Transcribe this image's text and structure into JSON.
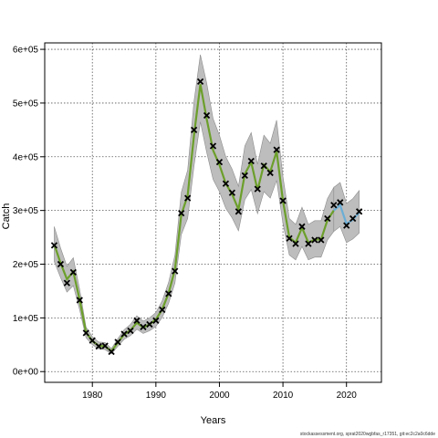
{
  "chart_data": {
    "type": "line",
    "xlabel": "Years",
    "ylabel": "Catch",
    "xlim": [
      1972.5,
      2025.5
    ],
    "ylim": [
      -20000,
      612000
    ],
    "x_ticks": [
      1980,
      1990,
      2000,
      2010,
      2020
    ],
    "x_tick_labels": [
      "1980",
      "1990",
      "2000",
      "2010",
      "2020"
    ],
    "y_ticks": [
      0,
      100000,
      200000,
      300000,
      400000,
      500000,
      600000
    ],
    "y_tick_labels": [
      "0e+00",
      "1e+05",
      "2e+05",
      "3e+05",
      "4e+05",
      "5e+05",
      "6e+05"
    ],
    "grid": true,
    "colors": {
      "band": "#bdbdbd",
      "band_edge": "#8c8c8c",
      "fit_line": "#6c9f2b",
      "forecast_line": "#6baed6",
      "marker": "#000000"
    },
    "observed": {
      "x": [
        1974,
        1975,
        1976,
        1977,
        1978,
        1979,
        1980,
        1981,
        1982,
        1983,
        1984,
        1985,
        1986,
        1987,
        1988,
        1989,
        1990,
        1991,
        1992,
        1993,
        1994,
        1995,
        1996,
        1997,
        1998,
        1999,
        2000,
        2001,
        2002,
        2003,
        2004,
        2005,
        2006,
        2007,
        2008,
        2009,
        2010,
        2011,
        2012,
        2013,
        2014,
        2015,
        2016,
        2017,
        2018,
        2019,
        2020,
        2021,
        2022
      ],
      "y": [
        235000,
        200000,
        165000,
        185000,
        133000,
        72000,
        58000,
        47000,
        48000,
        37000,
        55000,
        70000,
        76000,
        95000,
        83000,
        88000,
        95000,
        115000,
        145000,
        187000,
        295000,
        323000,
        450000,
        540000,
        477000,
        420000,
        390000,
        350000,
        333000,
        298000,
        365000,
        392000,
        340000,
        383000,
        370000,
        413000,
        318000,
        248000,
        238000,
        270000,
        238000,
        245000,
        245000,
        285000,
        310000,
        315000,
        272000,
        285000,
        298000
      ]
    },
    "fit": {
      "x": [
        1974,
        1975,
        1976,
        1977,
        1978,
        1979,
        1980,
        1981,
        1982,
        1983,
        1984,
        1985,
        1986,
        1987,
        1988,
        1989,
        1990,
        1991,
        1992,
        1993,
        1994,
        1995,
        1996,
        1997,
        1998,
        1999,
        2000,
        2001,
        2002,
        2003,
        2004,
        2005,
        2006,
        2007,
        2008,
        2009,
        2010,
        2011,
        2012,
        2013,
        2014,
        2015,
        2016,
        2017,
        2018
      ],
      "y": [
        237000,
        202000,
        172000,
        186000,
        134000,
        73000,
        57000,
        48000,
        47000,
        38000,
        54000,
        69000,
        77000,
        91000,
        82000,
        88000,
        97000,
        116000,
        146000,
        190000,
        292000,
        328000,
        440000,
        535000,
        470000,
        412000,
        385000,
        350000,
        330000,
        302000,
        368000,
        390000,
        338000,
        385000,
        372000,
        410000,
        318000,
        250000,
        240000,
        268000,
        240000,
        246000,
        246000,
        282000,
        300000
      ]
    },
    "fit_lower": [
      205000,
      175000,
      148000,
      160000,
      115000,
      63000,
      50000,
      42000,
      41000,
      33000,
      47000,
      60000,
      67000,
      79000,
      71000,
      76000,
      84000,
      101000,
      127000,
      165000,
      255000,
      285000,
      383000,
      465000,
      408000,
      358000,
      335000,
      304000,
      286000,
      262000,
      320000,
      339000,
      294000,
      335000,
      323000,
      356000,
      276000,
      217000,
      208000,
      233000,
      208000,
      213000,
      213000,
      245000,
      261000
    ],
    "fit_upper": [
      270000,
      230000,
      196000,
      212000,
      153000,
      83000,
      65000,
      55000,
      54000,
      43000,
      61000,
      78000,
      88000,
      104000,
      94000,
      100000,
      110000,
      132000,
      166000,
      217000,
      334000,
      375000,
      503000,
      590000,
      537000,
      471000,
      440000,
      400000,
      377000,
      345000,
      420000,
      445000,
      386000,
      440000,
      425000,
      468000,
      363000,
      285000,
      274000,
      306000,
      274000,
      281000,
      281000,
      322000,
      343000
    ],
    "forecast": {
      "x": [
        2018,
        2019,
        2020,
        2021,
        2022
      ],
      "y": [
        300000,
        310000,
        275000,
        283000,
        296000
      ]
    },
    "forecast_lower": [
      261000,
      270000,
      240000,
      247000,
      258000
    ],
    "forecast_upper": [
      343000,
      352000,
      313000,
      322000,
      337000
    ]
  },
  "footer_text": "stockassessment.org, sprat2020wgbfas_r17351, git:ec2c2a0c6dde"
}
